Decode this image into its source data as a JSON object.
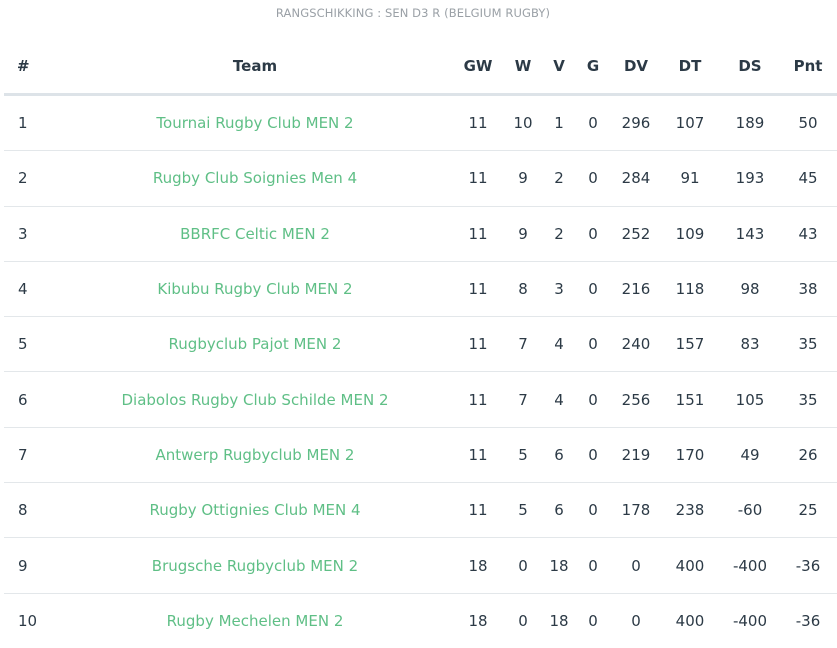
{
  "caption": "RANGSCHIKKING : SEN D3 R (BELGIUM RUGBY)",
  "colors": {
    "team_link": "#5fbf86",
    "text": "#2c3a46",
    "caption": "#9aa0a6",
    "divider": "#e3e7ea"
  },
  "table": {
    "headers": {
      "rank": "#",
      "team": "Team",
      "gw": "GW",
      "w": "W",
      "v": "V",
      "g": "G",
      "dv": "DV",
      "dt": "DT",
      "ds": "DS",
      "pnt": "Pnt"
    },
    "rows": [
      {
        "rank": "1",
        "team": "Tournai Rugby Club MEN 2",
        "gw": "11",
        "w": "10",
        "v": "1",
        "g": "0",
        "dv": "296",
        "dt": "107",
        "ds": "189",
        "pnt": "50"
      },
      {
        "rank": "2",
        "team": "Rugby Club Soignies Men 4",
        "gw": "11",
        "w": "9",
        "v": "2",
        "g": "0",
        "dv": "284",
        "dt": "91",
        "ds": "193",
        "pnt": "45"
      },
      {
        "rank": "3",
        "team": "BBRFC Celtic MEN 2",
        "gw": "11",
        "w": "9",
        "v": "2",
        "g": "0",
        "dv": "252",
        "dt": "109",
        "ds": "143",
        "pnt": "43"
      },
      {
        "rank": "4",
        "team": "Kibubu Rugby Club MEN 2",
        "gw": "11",
        "w": "8",
        "v": "3",
        "g": "0",
        "dv": "216",
        "dt": "118",
        "ds": "98",
        "pnt": "38"
      },
      {
        "rank": "5",
        "team": "Rugbyclub Pajot MEN 2",
        "gw": "11",
        "w": "7",
        "v": "4",
        "g": "0",
        "dv": "240",
        "dt": "157",
        "ds": "83",
        "pnt": "35"
      },
      {
        "rank": "6",
        "team": "Diabolos Rugby Club Schilde MEN 2",
        "gw": "11",
        "w": "7",
        "v": "4",
        "g": "0",
        "dv": "256",
        "dt": "151",
        "ds": "105",
        "pnt": "35"
      },
      {
        "rank": "7",
        "team": "Antwerp Rugbyclub MEN 2",
        "gw": "11",
        "w": "5",
        "v": "6",
        "g": "0",
        "dv": "219",
        "dt": "170",
        "ds": "49",
        "pnt": "26"
      },
      {
        "rank": "8",
        "team": "Rugby Ottignies Club MEN 4",
        "gw": "11",
        "w": "5",
        "v": "6",
        "g": "0",
        "dv": "178",
        "dt": "238",
        "ds": "-60",
        "pnt": "25"
      },
      {
        "rank": "9",
        "team": "Brugsche Rugbyclub MEN 2",
        "gw": "18",
        "w": "0",
        "v": "18",
        "g": "0",
        "dv": "0",
        "dt": "400",
        "ds": "-400",
        "pnt": "-36"
      },
      {
        "rank": "10",
        "team": "Rugby Mechelen MEN 2",
        "gw": "18",
        "w": "0",
        "v": "18",
        "g": "0",
        "dv": "0",
        "dt": "400",
        "ds": "-400",
        "pnt": "-36"
      }
    ]
  }
}
